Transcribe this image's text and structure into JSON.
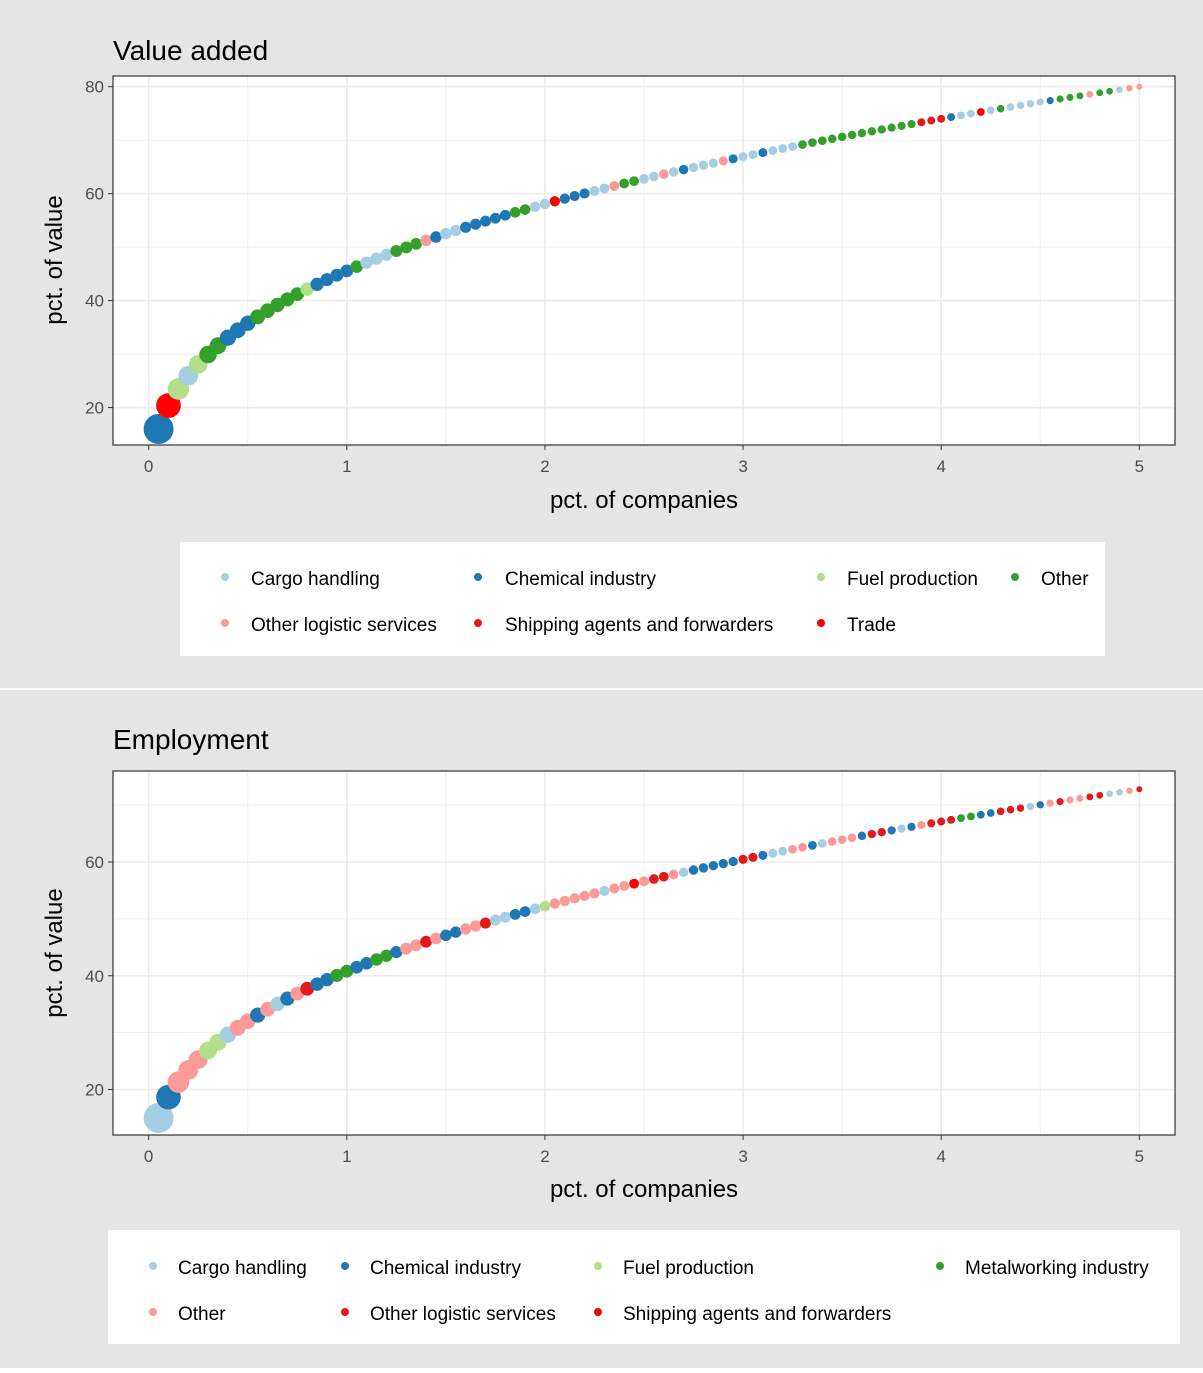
{
  "colors": {
    "light_blue": "#a6cee3",
    "dark_blue": "#1f78b4",
    "light_green": "#b2df8a",
    "dark_green": "#33a02c",
    "pink": "#fb9a99",
    "dark_red": "#e31a1c",
    "red": "#ff0000",
    "panel_background": "#e5e5e5",
    "plot_background": "#ffffff",
    "gridline": "#ebebeb"
  },
  "chart_data": [
    {
      "type": "scatter",
      "title": "Value added",
      "xlabel": "pct. of companies",
      "ylabel": "pct. of value",
      "xlim": [
        -0.18,
        5.18
      ],
      "ylim": [
        13,
        82
      ],
      "x_ticks": [
        0,
        1,
        2,
        3,
        4,
        5
      ],
      "y_ticks": [
        20,
        40,
        60,
        80
      ],
      "grid": true,
      "legend_position": "bottom",
      "legend": [
        {
          "label": "Cargo handling",
          "color": "#a6cee3"
        },
        {
          "label": "Chemical industry",
          "color": "#1f78b4"
        },
        {
          "label": "Fuel production",
          "color": "#b2df8a"
        },
        {
          "label": "Other",
          "color": "#33a02c"
        },
        {
          "label": "Other logistic services",
          "color": "#fb9a99"
        },
        {
          "label": "Shipping agents and forwarders",
          "color": "#e31a1c"
        },
        {
          "label": "Trade",
          "color": "#ff0000"
        }
      ],
      "points": {
        "x_start": 0.05,
        "x_step": 0.05,
        "count": 100,
        "y_curve": {
          "y_first": 16.0,
          "y_last": 80.0,
          "exponent": 0.35
        },
        "size_range": [
          3,
          15
        ],
        "color_sequence": [
          "Chemical industry",
          "Trade",
          "Fuel production",
          "Cargo handling",
          "Fuel production",
          "Other",
          "Other",
          "Chemical industry",
          "Chemical industry",
          "Chemical industry",
          "Other",
          "Other",
          "Other",
          "Other",
          "Other",
          "Fuel production",
          "Chemical industry",
          "Chemical industry",
          "Chemical industry",
          "Chemical industry",
          "Other",
          "Cargo handling",
          "Cargo handling",
          "Cargo handling",
          "Other",
          "Other",
          "Other",
          "Other logistic services",
          "Chemical industry",
          "Cargo handling",
          "Cargo handling",
          "Chemical industry",
          "Chemical industry",
          "Chemical industry",
          "Chemical industry",
          "Chemical industry",
          "Other",
          "Other",
          "Cargo handling",
          "Cargo handling",
          "Trade",
          "Chemical industry",
          "Chemical industry",
          "Chemical industry",
          "Cargo handling",
          "Cargo handling",
          "Other logistic services",
          "Other",
          "Other",
          "Cargo handling",
          "Cargo handling",
          "Other logistic services",
          "Cargo handling",
          "Chemical industry",
          "Cargo handling",
          "Cargo handling",
          "Cargo handling",
          "Other logistic services",
          "Chemical industry",
          "Cargo handling",
          "Cargo handling",
          "Chemical industry",
          "Cargo handling",
          "Cargo handling",
          "Cargo handling",
          "Other",
          "Other",
          "Other",
          "Other",
          "Other",
          "Other",
          "Other",
          "Other",
          "Other",
          "Other",
          "Other",
          "Other",
          "Shipping agents and forwarders",
          "Shipping agents and forwarders",
          "Shipping agents and forwarders",
          "Chemical industry",
          "Cargo handling",
          "Cargo handling",
          "Trade",
          "Cargo handling",
          "Other",
          "Cargo handling",
          "Cargo handling",
          "Cargo handling",
          "Cargo handling",
          "Chemical industry",
          "Other",
          "Other",
          "Other",
          "Other logistic services",
          "Other",
          "Other",
          "Cargo handling",
          "Other logistic services",
          "Other logistic services"
        ]
      }
    },
    {
      "type": "scatter",
      "title": "Employment",
      "xlabel": "pct. of companies",
      "ylabel": "pct. of value",
      "xlim": [
        -0.18,
        5.18
      ],
      "ylim": [
        12,
        76
      ],
      "x_ticks": [
        0,
        1,
        2,
        3,
        4,
        5
      ],
      "y_ticks": [
        20,
        40,
        60
      ],
      "grid": true,
      "legend_position": "bottom",
      "legend": [
        {
          "label": "Cargo handling",
          "color": "#a6cee3"
        },
        {
          "label": "Chemical industry",
          "color": "#1f78b4"
        },
        {
          "label": "Fuel production",
          "color": "#b2df8a"
        },
        {
          "label": "Metalworking industry",
          "color": "#33a02c"
        },
        {
          "label": "Other",
          "color": "#fb9a99"
        },
        {
          "label": "Other logistic services",
          "color": "#e31a1c"
        },
        {
          "label": "Shipping agents and forwarders",
          "color": "#ff0000"
        }
      ],
      "points": {
        "x_start": 0.05,
        "x_step": 0.05,
        "count": 100,
        "y_curve": {
          "y_first": 15.0,
          "y_last": 72.8,
          "exponent": 0.38
        },
        "size_range": [
          3,
          15
        ],
        "color_sequence": [
          "Cargo handling",
          "Chemical industry",
          "Other",
          "Other",
          "Other",
          "Fuel production",
          "Fuel production",
          "Cargo handling",
          "Other",
          "Other",
          "Chemical industry",
          "Other",
          "Cargo handling",
          "Chemical industry",
          "Other",
          "Other logistic services",
          "Chemical industry",
          "Chemical industry",
          "Metalworking industry",
          "Metalworking industry",
          "Chemical industry",
          "Chemical industry",
          "Metalworking industry",
          "Metalworking industry",
          "Chemical industry",
          "Other",
          "Other",
          "Other logistic services",
          "Other",
          "Chemical industry",
          "Chemical industry",
          "Other",
          "Other",
          "Other logistic services",
          "Cargo handling",
          "Cargo handling",
          "Chemical industry",
          "Chemical industry",
          "Cargo handling",
          "Fuel production",
          "Other",
          "Other",
          "Other",
          "Other",
          "Other",
          "Cargo handling",
          "Other",
          "Other",
          "Shipping agents and forwarders",
          "Other",
          "Other logistic services",
          "Other logistic services",
          "Other",
          "Cargo handling",
          "Chemical industry",
          "Chemical industry",
          "Chemical industry",
          "Chemical industry",
          "Chemical industry",
          "Other logistic services",
          "Other logistic services",
          "Chemical industry",
          "Cargo handling",
          "Cargo handling",
          "Other",
          "Other",
          "Chemical industry",
          "Cargo handling",
          "Other",
          "Other",
          "Other",
          "Chemical industry",
          "Other logistic services",
          "Other logistic services",
          "Chemical industry",
          "Cargo handling",
          "Chemical industry",
          "Other",
          "Other logistic services",
          "Other logistic services",
          "Other logistic services",
          "Metalworking industry",
          "Metalworking industry",
          "Chemical industry",
          "Chemical industry",
          "Other logistic services",
          "Other logistic services",
          "Other logistic services",
          "Cargo handling",
          "Chemical industry",
          "Other",
          "Other logistic services",
          "Other",
          "Other",
          "Other logistic services",
          "Other logistic services",
          "Cargo handling",
          "Cargo handling",
          "Other",
          "Other logistic services"
        ]
      }
    }
  ]
}
